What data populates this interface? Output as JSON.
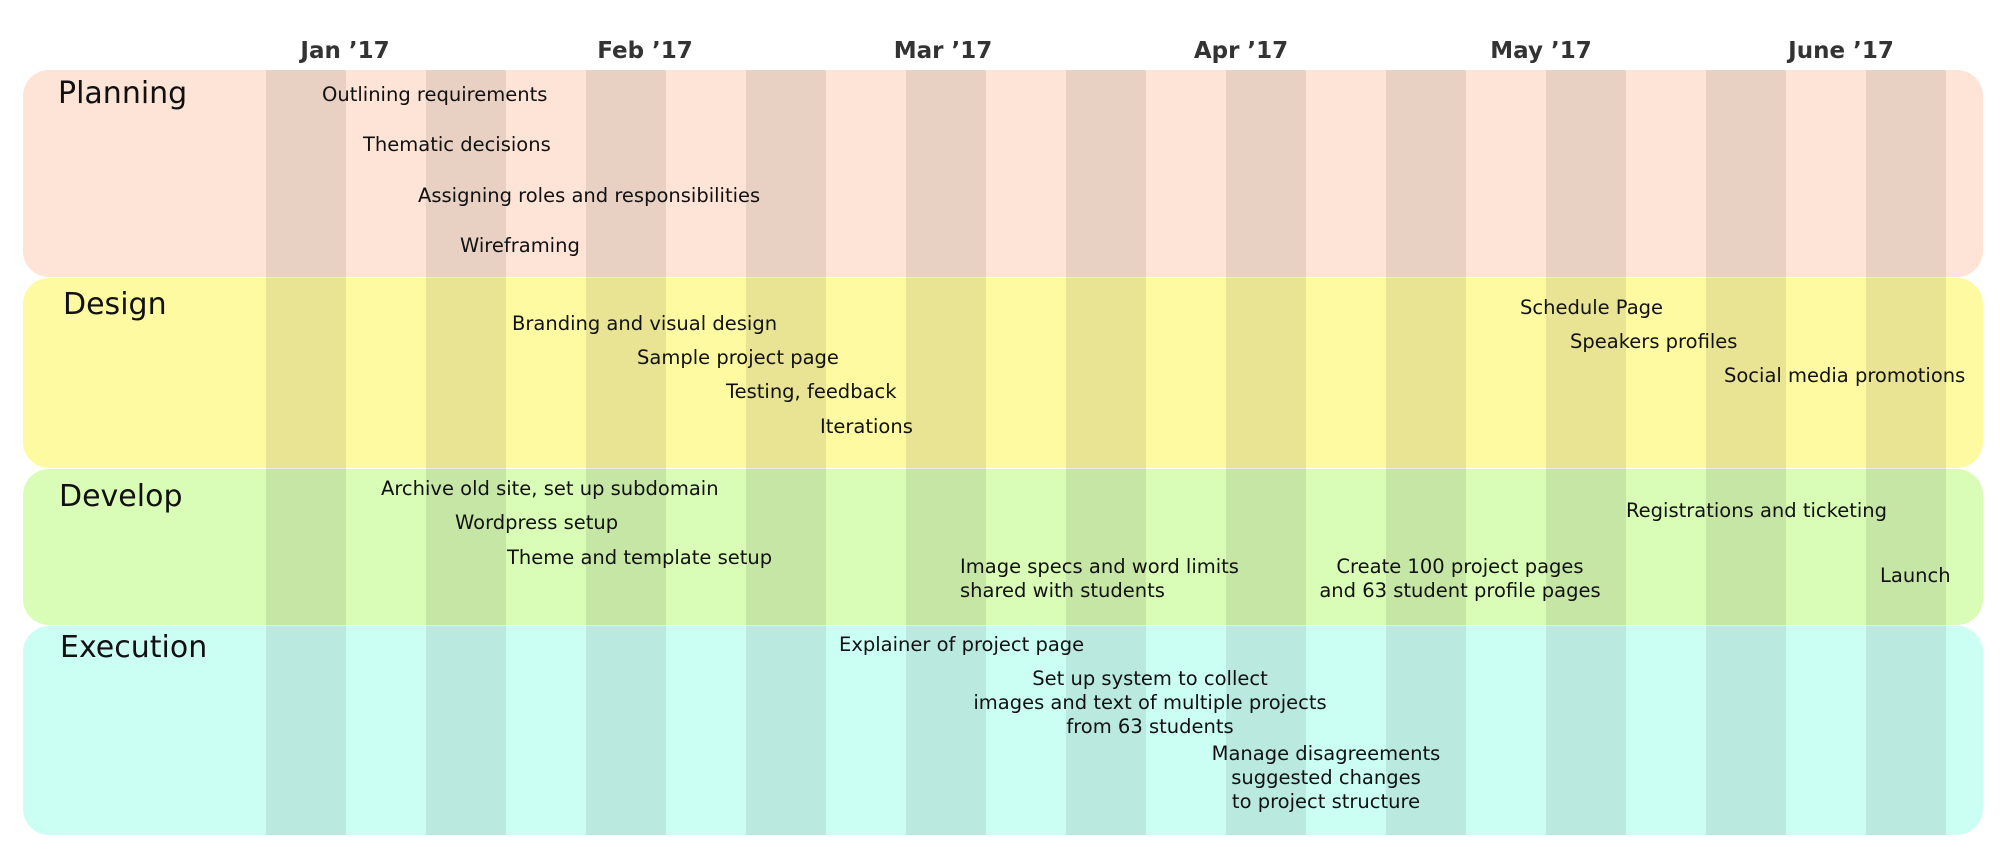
{
  "colors": {
    "planning": "#fee4d6",
    "design": "#fefaa2",
    "develop": "#d9fcb6",
    "execution": "#ccfff4",
    "stripe": "rgba(0,0,0,0.085)"
  },
  "months": [
    "Jan ’17",
    "Feb ’17",
    "Mar ’17",
    "Apr ’17",
    "May ’17",
    "June ’17"
  ],
  "lanes": {
    "planning": {
      "title": "Planning",
      "tasks": [
        "Outlining requirements",
        "Thematic decisions",
        "Assigning roles and responsibilities",
        "Wireframing"
      ]
    },
    "design": {
      "title": "Design",
      "tasks": [
        "Branding and visual design",
        "Sample project page",
        "Testing, feedback",
        "Iterations",
        "Schedule Page",
        "Speakers profiles",
        "Social media promotions"
      ]
    },
    "develop": {
      "title": "Develop",
      "tasks": [
        "Archive old site, set up subdomain",
        "Wordpress setup",
        "Theme and template setup",
        "Registrations and ticketing",
        "Launch"
      ],
      "image_specs": [
        "Image specs and word limits",
        "shared with students"
      ],
      "create_pages": [
        "Create 100 project pages",
        "and 63 student profile pages"
      ]
    },
    "execution": {
      "title": "Execution",
      "tasks": [
        "Explainer of project page"
      ],
      "setup_system": [
        "Set up system to collect",
        "images and text of multiple projects",
        "from 63 students"
      ],
      "manage": [
        "Manage disagreements",
        "suggested changes",
        "to project structure"
      ]
    }
  }
}
